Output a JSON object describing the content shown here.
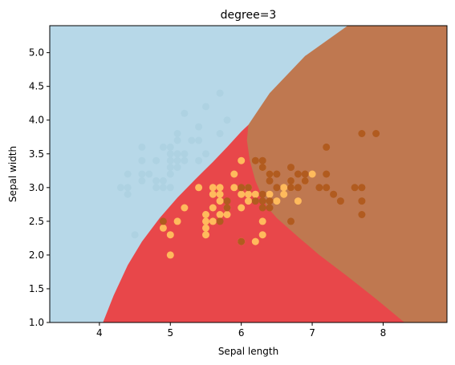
{
  "chart_data": {
    "type": "scatter",
    "title": "degree=3",
    "xlabel": "Sepal length",
    "ylabel": "Sepal width",
    "xlim": [
      3.3,
      8.9
    ],
    "ylim": [
      1.0,
      5.4
    ],
    "x_ticks": [
      "4",
      "5",
      "6",
      "7",
      "8"
    ],
    "y_ticks": [
      "1.0",
      "1.5",
      "2.0",
      "2.5",
      "3.0",
      "3.5",
      "4.0",
      "4.5",
      "5.0"
    ],
    "grid": false,
    "legend": "none",
    "decision_regions": [
      {
        "class": 0,
        "color": "#b7d8e8"
      },
      {
        "class": 1,
        "color": "#e8474a"
      },
      {
        "class": 2,
        "color": "#bf7850"
      }
    ],
    "point_colors": [
      "#aed2e2",
      "#ffba5c",
      "#b15b1f"
    ],
    "series": [
      {
        "class": 0,
        "points": [
          [
            4.3,
            3.0
          ],
          [
            4.4,
            2.9
          ],
          [
            4.4,
            3.0
          ],
          [
            4.4,
            3.2
          ],
          [
            4.5,
            2.3
          ],
          [
            4.6,
            3.1
          ],
          [
            4.6,
            3.2
          ],
          [
            4.6,
            3.4
          ],
          [
            4.6,
            3.6
          ],
          [
            4.7,
            3.2
          ],
          [
            4.8,
            3.0
          ],
          [
            4.8,
            3.1
          ],
          [
            4.8,
            3.4
          ],
          [
            4.9,
            3.0
          ],
          [
            4.9,
            3.1
          ],
          [
            4.9,
            3.6
          ],
          [
            5.0,
            3.0
          ],
          [
            5.0,
            3.2
          ],
          [
            5.0,
            3.3
          ],
          [
            5.0,
            3.4
          ],
          [
            5.0,
            3.5
          ],
          [
            5.0,
            3.6
          ],
          [
            5.1,
            3.3
          ],
          [
            5.1,
            3.4
          ],
          [
            5.1,
            3.5
          ],
          [
            5.1,
            3.7
          ],
          [
            5.1,
            3.8
          ],
          [
            5.2,
            3.4
          ],
          [
            5.2,
            3.5
          ],
          [
            5.2,
            4.1
          ],
          [
            5.3,
            3.7
          ],
          [
            5.4,
            3.4
          ],
          [
            5.4,
            3.7
          ],
          [
            5.4,
            3.9
          ],
          [
            5.5,
            3.5
          ],
          [
            5.5,
            4.2
          ],
          [
            5.7,
            3.8
          ],
          [
            5.7,
            4.4
          ],
          [
            5.8,
            4.0
          ]
        ]
      },
      {
        "class": 1,
        "points": [
          [
            4.9,
            2.4
          ],
          [
            5.0,
            2.0
          ],
          [
            5.0,
            2.3
          ],
          [
            5.1,
            2.5
          ],
          [
            5.2,
            2.7
          ],
          [
            5.4,
            3.0
          ],
          [
            5.5,
            2.3
          ],
          [
            5.5,
            2.4
          ],
          [
            5.5,
            2.5
          ],
          [
            5.5,
            2.6
          ],
          [
            5.6,
            2.5
          ],
          [
            5.6,
            2.7
          ],
          [
            5.6,
            2.9
          ],
          [
            5.6,
            3.0
          ],
          [
            5.7,
            2.6
          ],
          [
            5.7,
            2.8
          ],
          [
            5.7,
            2.9
          ],
          [
            5.7,
            3.0
          ],
          [
            5.8,
            2.6
          ],
          [
            5.8,
            2.7
          ],
          [
            5.9,
            3.0
          ],
          [
            5.9,
            3.2
          ],
          [
            6.0,
            2.2
          ],
          [
            6.0,
            2.7
          ],
          [
            6.0,
            2.9
          ],
          [
            6.0,
            3.4
          ],
          [
            6.1,
            2.8
          ],
          [
            6.1,
            2.9
          ],
          [
            6.1,
            3.0
          ],
          [
            6.2,
            2.2
          ],
          [
            6.2,
            2.9
          ],
          [
            6.3,
            2.5
          ],
          [
            6.3,
            2.3
          ],
          [
            6.3,
            3.3
          ],
          [
            6.4,
            2.9
          ],
          [
            6.4,
            3.2
          ],
          [
            6.5,
            2.8
          ],
          [
            6.6,
            2.9
          ],
          [
            6.6,
            3.0
          ],
          [
            6.7,
            3.0
          ],
          [
            6.7,
            3.1
          ],
          [
            6.8,
            2.8
          ],
          [
            6.9,
            3.1
          ],
          [
            7.0,
            3.2
          ]
        ]
      },
      {
        "class": 2,
        "points": [
          [
            4.9,
            2.5
          ],
          [
            5.7,
            2.5
          ],
          [
            5.8,
            2.7
          ],
          [
            5.8,
            2.8
          ],
          [
            6.0,
            2.2
          ],
          [
            6.0,
            3.0
          ],
          [
            6.1,
            3.0
          ],
          [
            6.2,
            2.8
          ],
          [
            6.2,
            3.4
          ],
          [
            6.3,
            2.7
          ],
          [
            6.3,
            2.8
          ],
          [
            6.3,
            2.9
          ],
          [
            6.3,
            3.3
          ],
          [
            6.3,
            3.4
          ],
          [
            6.4,
            2.7
          ],
          [
            6.4,
            2.8
          ],
          [
            6.4,
            3.1
          ],
          [
            6.4,
            3.2
          ],
          [
            6.5,
            3.0
          ],
          [
            6.5,
            3.2
          ],
          [
            6.7,
            2.5
          ],
          [
            6.7,
            3.0
          ],
          [
            6.7,
            3.1
          ],
          [
            6.7,
            3.3
          ],
          [
            6.8,
            3.0
          ],
          [
            6.8,
            3.2
          ],
          [
            6.9,
            3.1
          ],
          [
            6.9,
            3.2
          ],
          [
            7.1,
            3.0
          ],
          [
            7.2,
            3.0
          ],
          [
            7.2,
            3.2
          ],
          [
            7.2,
            3.6
          ],
          [
            7.3,
            2.9
          ],
          [
            7.4,
            2.8
          ],
          [
            7.6,
            3.0
          ],
          [
            7.7,
            2.6
          ],
          [
            7.7,
            2.8
          ],
          [
            7.7,
            3.0
          ],
          [
            7.7,
            3.8
          ],
          [
            7.9,
            3.8
          ]
        ]
      }
    ]
  }
}
